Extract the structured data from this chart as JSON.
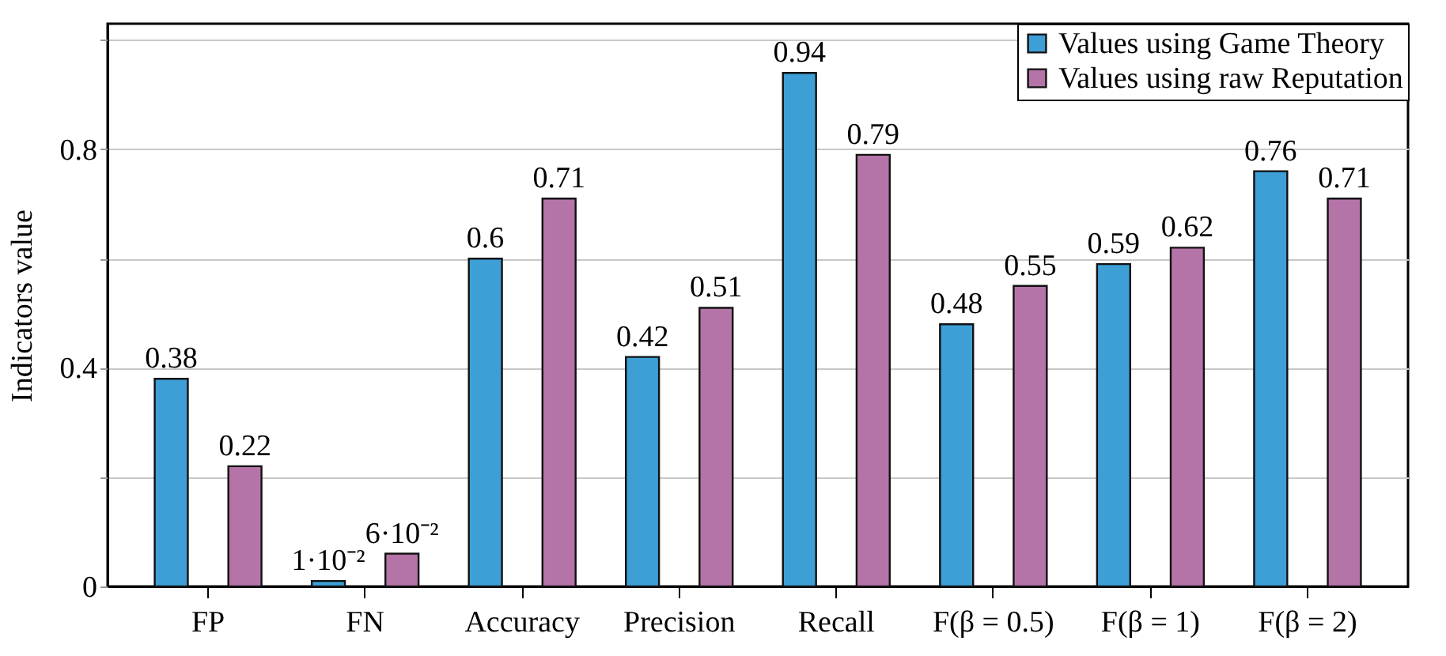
{
  "chart_data": {
    "type": "bar",
    "ylabel": "Indicators value",
    "categories": [
      "FP",
      "FN",
      "Accuracy",
      "Precision",
      "Recall",
      "F(β = 0.5)",
      "F(β = 1)",
      "F(β = 2)"
    ],
    "series": [
      {
        "name": "Values using Game Theory",
        "color": "#3d9fd6",
        "values": [
          0.38,
          0.01,
          0.6,
          0.42,
          0.94,
          0.48,
          0.59,
          0.76
        ],
        "value_labels": [
          "0.38",
          "1·10⁻²",
          "0.6",
          "0.42",
          "0.94",
          "0.48",
          "0.59",
          "0.76"
        ]
      },
      {
        "name": "Values using raw Reputation",
        "color": "#b574a8",
        "values": [
          0.22,
          0.06,
          0.71,
          0.51,
          0.79,
          0.55,
          0.62,
          0.71
        ],
        "value_labels": [
          "0.22",
          "6·10⁻²",
          "0.71",
          "0.51",
          "0.79",
          "0.55",
          "0.62",
          "0.71"
        ]
      }
    ],
    "ylim": [
      0,
      1.03
    ],
    "yticks": [
      0,
      {
        "value": 0.2,
        "label": null
      },
      0.4,
      {
        "value": 0.6,
        "label": null
      },
      0.8,
      {
        "value": 1.0,
        "label": null
      }
    ],
    "grid": "y",
    "legend": "top right"
  }
}
